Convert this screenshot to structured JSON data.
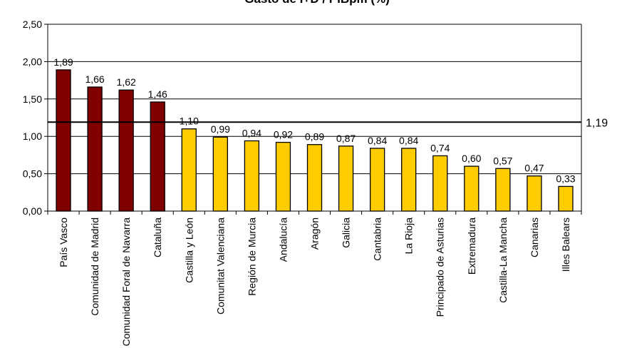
{
  "chart_data": {
    "type": "bar",
    "title": "Gasto de I+D / PIBpm (%)",
    "xlabel": "",
    "ylabel": "",
    "ylim": [
      0,
      2.5
    ],
    "yticks": [
      "0,00",
      "0,50",
      "1,00",
      "1,50",
      "2,00",
      "2,50"
    ],
    "ytick_values": [
      0,
      0.5,
      1,
      1.5,
      2,
      2.5
    ],
    "grid": true,
    "categories": [
      "País Vasco",
      "Comunidad de Madrid",
      "Comunidad Foral de Navarra",
      "Cataluña",
      "Castilla y León",
      "Comunitat Valenciana",
      "Región de Murcia",
      "Andalucía",
      "Aragón",
      "Galicia",
      "Cantabria",
      "La Rioja",
      "Principado de Asturias",
      "Extremadura",
      "Castilla-La Mancha",
      "Canarias",
      "Illes Balears"
    ],
    "values": [
      1.89,
      1.66,
      1.62,
      1.46,
      1.1,
      0.99,
      0.94,
      0.92,
      0.89,
      0.87,
      0.84,
      0.84,
      0.74,
      0.6,
      0.57,
      0.47,
      0.33
    ],
    "value_labels": [
      "1,89",
      "1,66",
      "1,62",
      "1,46",
      "1,10",
      "0,99",
      "0,94",
      "0,92",
      "0,89",
      "0,87",
      "0,84",
      "0,84",
      "0,74",
      "0,60",
      "0,57",
      "0,47",
      "0,33"
    ],
    "reference_line": {
      "value": 1.19,
      "label": "1,19"
    },
    "colors": {
      "above_average": "#800000",
      "below_average": "#FFCC00"
    }
  }
}
